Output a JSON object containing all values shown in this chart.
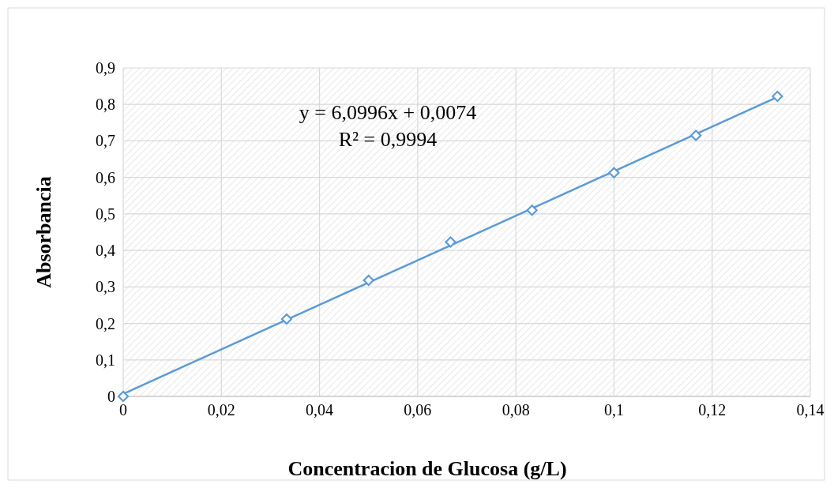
{
  "chart_data": {
    "type": "scatter",
    "xlabel": "Concentracion de Glucosa (g/L)",
    "ylabel": "Absorbancia",
    "annotations": [
      "y = 6,0996x + 0,0074",
      "R² = 0,9994"
    ],
    "xlim": [
      0,
      0.14
    ],
    "xticks": [
      {
        "value": 0,
        "label": "0"
      },
      {
        "value": 0.02,
        "label": "0,02"
      },
      {
        "value": 0.04,
        "label": "0,04"
      },
      {
        "value": 0.06,
        "label": "0,06"
      },
      {
        "value": 0.08,
        "label": "0,08"
      },
      {
        "value": 0.1,
        "label": "0,1"
      },
      {
        "value": 0.12,
        "label": "0,12"
      },
      {
        "value": 0.14,
        "label": "0,14"
      }
    ],
    "ylim": [
      0,
      0.9
    ],
    "yticks": [
      {
        "value": 0,
        "label": "0"
      },
      {
        "value": 0.1,
        "label": "0,1"
      },
      {
        "value": 0.2,
        "label": "0,2"
      },
      {
        "value": 0.3,
        "label": "0,3"
      },
      {
        "value": 0.4,
        "label": "0,4"
      },
      {
        "value": 0.5,
        "label": "0,5"
      },
      {
        "value": 0.6,
        "label": "0,6"
      },
      {
        "value": 0.7,
        "label": "0,7"
      },
      {
        "value": 0.8,
        "label": "0,8"
      },
      {
        "value": 0.9,
        "label": "0,9"
      }
    ],
    "grid": true,
    "series": [
      {
        "type": "line",
        "color": "#5b9bd5",
        "x": [
          0,
          0.1333
        ],
        "values": [
          0.007,
          0.82
        ],
        "marker": "none",
        "line_style": "solid"
      },
      {
        "color": "#5b9bd5",
        "x": [
          0,
          0.0333,
          0.05,
          0.0667,
          0.0833,
          0.1,
          0.1167,
          0.1333
        ],
        "values": [
          0,
          0.212,
          0.318,
          0.423,
          0.51,
          0.613,
          0.715,
          0.822
        ],
        "marker": "diamond"
      }
    ]
  }
}
